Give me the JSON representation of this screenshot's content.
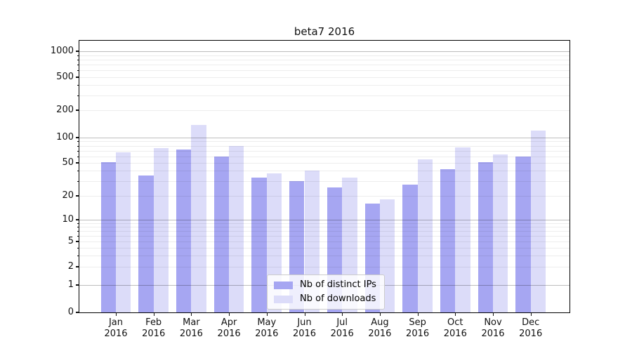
{
  "title": "beta7 2016",
  "chart_data": {
    "type": "bar",
    "title": "beta7 2016",
    "categories": [
      "Jan",
      "Feb",
      "Mar",
      "Apr",
      "May",
      "Jun",
      "Jul",
      "Aug",
      "Sep",
      "Oct",
      "Nov",
      "Dec"
    ],
    "category_year": "2016",
    "series": [
      {
        "name": "Nb of distinct IPs",
        "color": "#a6a6f2",
        "values": [
          51,
          35,
          72,
          60,
          33,
          30,
          25,
          16,
          27,
          42,
          51,
          60
        ]
      },
      {
        "name": "Nb of downloads",
        "color": "#dcdcf9",
        "values": [
          67,
          75,
          138,
          80,
          37,
          40,
          33,
          18,
          55,
          76,
          63,
          120
        ]
      }
    ],
    "yticks": [
      0,
      1,
      2,
      5,
      10,
      20,
      50,
      100,
      200,
      500,
      1000
    ],
    "scale": "log-like with 0 baseline (ticks 0,1,2,5,10,20,50,100,200,500,1000)",
    "ylim": [
      0,
      1300
    ],
    "grid": true,
    "legend_position": "lower center"
  }
}
